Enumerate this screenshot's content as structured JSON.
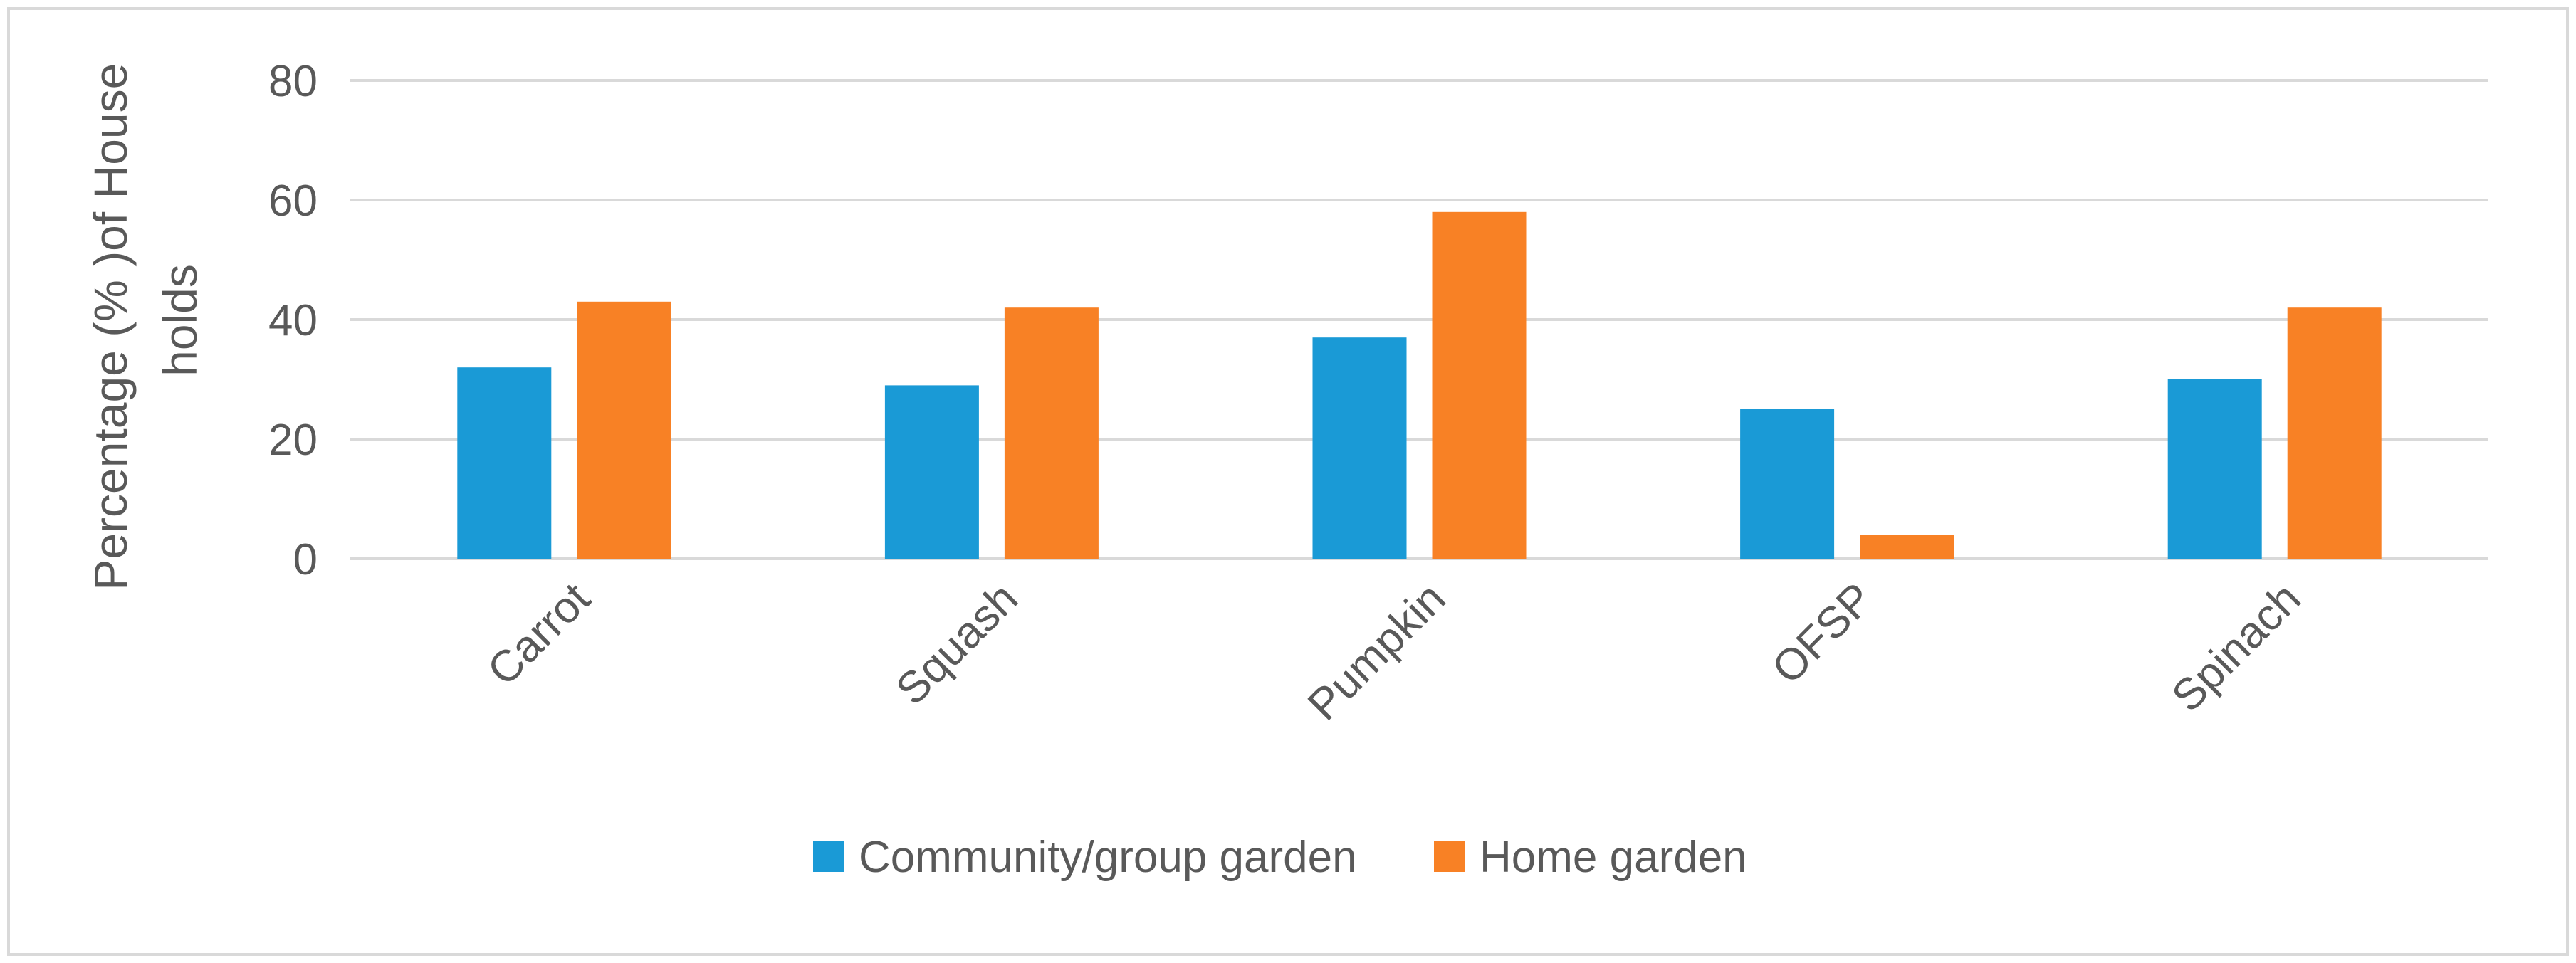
{
  "chart_data": {
    "type": "bar",
    "title": "",
    "xlabel": "",
    "ylabel_lines": [
      "Percentage (% )of House",
      "holds"
    ],
    "ylim": [
      0,
      80
    ],
    "yticks": [
      0,
      20,
      40,
      60,
      80
    ],
    "grid": true,
    "legend_position": "bottom",
    "categories": [
      "Carrot",
      "Squash",
      "Pumpkin",
      "OFSP",
      "Spinach"
    ],
    "series": [
      {
        "name": "Community/group garden",
        "color": "#1a9ad6",
        "values": [
          32,
          29,
          37,
          25,
          30
        ]
      },
      {
        "name": "Home garden",
        "color": "#f88125",
        "values": [
          43,
          42,
          58,
          4,
          42
        ]
      }
    ]
  }
}
